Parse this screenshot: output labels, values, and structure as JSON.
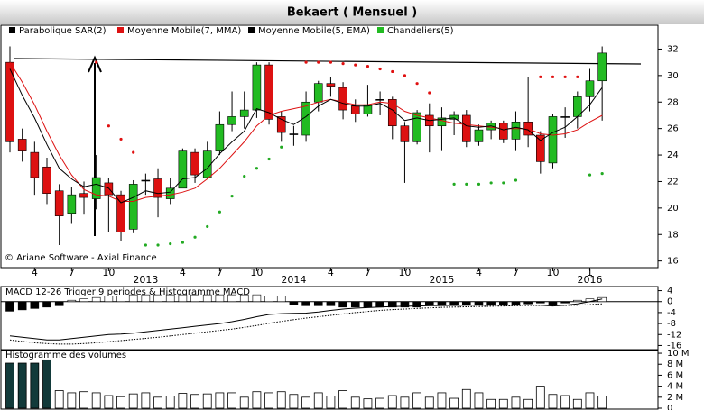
{
  "chart_data": [
    {
      "type": "candlestick",
      "title": "Bekaert  ( Mensuel )",
      "annotation": "© Ariane Software - Axial Finance",
      "categories": [
        null,
        null,
        "4",
        null,
        null,
        "7",
        null,
        null,
        "10",
        null,
        null,
        null,
        null,
        null,
        "4",
        null,
        null,
        "7",
        null,
        null,
        "10",
        null,
        null,
        null,
        null,
        null,
        "4",
        null,
        null,
        "7",
        null,
        null,
        "10",
        null,
        null,
        null,
        null,
        null,
        "4",
        null,
        null,
        "7",
        null,
        null,
        "10",
        null,
        null,
        "1",
        null
      ],
      "years": [
        {
          "index": 11,
          "label": "2013"
        },
        {
          "index": 23,
          "label": "2014"
        },
        {
          "index": 35,
          "label": "2015"
        },
        {
          "index": 47,
          "label": "2016"
        }
      ],
      "series": [
        {
          "name": "Parabolique SAR(2)",
          "color": "#000000",
          "above_color": "#e01010",
          "below_color": "#22aa22",
          "values": [
            null,
            null,
            null,
            null,
            null,
            null,
            null,
            31.0,
            26.2,
            25.2,
            24.2,
            17.2,
            17.2,
            17.3,
            17.4,
            17.8,
            18.6,
            19.7,
            20.9,
            22.4,
            23.0,
            23.7,
            24.6,
            null,
            31.0,
            31.0,
            31.0,
            30.9,
            30.8,
            30.7,
            30.5,
            30.3,
            30.0,
            29.4,
            28.7,
            null,
            21.8,
            21.8,
            21.8,
            21.9,
            21.9,
            22.1,
            null,
            29.9,
            29.9,
            29.9,
            29.9,
            22.5,
            22.6
          ]
        },
        {
          "name": "Moyenne Mobile(7, MMA)",
          "color": "#dd1111",
          "values": [
            31,
            29.5,
            27.8,
            25.8,
            24,
            22.5,
            21.4,
            21,
            20.9,
            20.5,
            20.5,
            20.8,
            20.9,
            21,
            21.2,
            21.5,
            22.2,
            23,
            24,
            25,
            26.2,
            27,
            27.3,
            27.5,
            27.7,
            28,
            28.2,
            28,
            27.8,
            27.8,
            28,
            27.9,
            27.3,
            27,
            26.8,
            26.6,
            26.4,
            26.3,
            26.2,
            26.1,
            26,
            26,
            26,
            25.6,
            25.5,
            25.6,
            25.9,
            26.5,
            27
          ]
        },
        {
          "name": "Moyenne Mobile(5, EMA)",
          "color": "#000000",
          "values": [
            30.5,
            28.5,
            26.8,
            24.8,
            23,
            22.2,
            21.6,
            21.8,
            21.5,
            20.4,
            20.8,
            21.3,
            21.1,
            21.2,
            22.2,
            22.3,
            23,
            24.1,
            25,
            25.8,
            27.5,
            27.2,
            26.7,
            26.3,
            26.9,
            27.7,
            28.2,
            27.9,
            27.7,
            27.7,
            27.9,
            27.4,
            26.6,
            26.8,
            26.6,
            26.7,
            26.8,
            26.2,
            26.1,
            26.2,
            25.9,
            26.1,
            25.9,
            25.1,
            25.7,
            26.1,
            26.9,
            27.8,
            29.1
          ]
        },
        {
          "name": "Chandeliers(5)",
          "color": "#22bb22",
          "down_color": "#dd1111",
          "open": [
            31.0,
            25.2,
            24.2,
            23.1,
            21.3,
            19.6,
            21.1,
            20.7,
            21.9,
            21.0,
            18.4,
            22.1,
            22.2,
            20.7,
            21.5,
            24.2,
            22.3,
            24.3,
            26.3,
            26.9,
            27.4,
            30.8,
            26.9,
            25.6,
            25.5,
            28.0,
            29.4,
            29.1,
            27.7,
            27.1,
            28.2,
            28.2,
            26.2,
            25.0,
            27.0,
            26.2,
            26.7,
            27.0,
            25.0,
            25.9,
            26.4,
            25.2,
            26.5,
            25.5,
            23.4,
            26.9,
            26.9,
            28.4,
            29.6
          ],
          "high": [
            32.2,
            26.0,
            25.0,
            23.8,
            21.8,
            21.6,
            22.0,
            24.0,
            22.3,
            21.3,
            22.1,
            22.6,
            23.0,
            22.3,
            24.5,
            24.5,
            25.0,
            27.3,
            28.8,
            28.8,
            31.0,
            31.0,
            27.3,
            26.2,
            28.8,
            29.6,
            29.9,
            29.5,
            28.2,
            29.3,
            28.8,
            28.4,
            26.5,
            27.4,
            27.9,
            27.6,
            27.3,
            27.4,
            26.3,
            26.6,
            26.6,
            27.3,
            29.9,
            25.8,
            27.1,
            27.6,
            28.8,
            30.5,
            32.2
          ],
          "low": [
            24.2,
            23.5,
            21.0,
            20.3,
            17.2,
            18.8,
            19.5,
            19.9,
            18.2,
            17.5,
            18.1,
            21.0,
            19.3,
            20.3,
            21.5,
            21.9,
            22.2,
            24.0,
            25.8,
            26.0,
            26.8,
            26.3,
            25.0,
            24.7,
            25.0,
            27.3,
            28.4,
            26.7,
            26.5,
            26.9,
            27.0,
            25.2,
            21.9,
            24.8,
            24.2,
            24.3,
            25.5,
            24.6,
            24.7,
            25.2,
            24.9,
            24.3,
            24.6,
            22.6,
            23.0,
            25.3,
            26.0,
            27.3,
            26.6
          ],
          "close": [
            25.0,
            24.3,
            22.3,
            21.1,
            19.4,
            21.0,
            20.8,
            22.3,
            21.0,
            18.2,
            21.8,
            22.1,
            20.8,
            21.5,
            24.3,
            22.5,
            24.3,
            26.3,
            26.9,
            27.4,
            30.8,
            26.7,
            25.7,
            25.6,
            28.0,
            29.4,
            29.2,
            27.4,
            27.1,
            27.8,
            28.2,
            26.2,
            25.0,
            27.2,
            26.2,
            26.8,
            27.0,
            25.0,
            25.9,
            26.4,
            25.2,
            26.5,
            25.5,
            23.5,
            26.9,
            26.9,
            28.4,
            29.6,
            31.7
          ]
        }
      ],
      "ylim": [
        15.5,
        33.8
      ],
      "yticks": [
        16,
        18,
        20,
        22,
        24,
        26,
        28,
        30,
        32
      ],
      "grid": false
    },
    {
      "type": "macd",
      "title": "MACD 12-26   Trigger 9 periodes & Histogramme MACD",
      "macd": [
        -12.5,
        -13,
        -13.5,
        -14,
        -14,
        -13.5,
        -13,
        -12.5,
        -12,
        -11.8,
        -11.5,
        -11,
        -10.5,
        -10,
        -9.5,
        -9,
        -8.5,
        -8,
        -7.3,
        -6.5,
        -5.5,
        -4.7,
        -4.4,
        -4.3,
        -4.2,
        -3.8,
        -3.2,
        -2.7,
        -2.4,
        -2.2,
        -2,
        -1.8,
        -1.7,
        -1.6,
        -1.5,
        -1.4,
        -1.4,
        -1.3,
        -1.3,
        -1.3,
        -1.3,
        -1.3,
        -1.2,
        -1.3,
        -1.6,
        -1.3,
        -0.8,
        0,
        1
      ],
      "trigger": [
        -14,
        -14.5,
        -15,
        -15.3,
        -15.5,
        -15.5,
        -15.3,
        -15,
        -14.6,
        -14.2,
        -13.8,
        -13.4,
        -13,
        -12.5,
        -12,
        -11.5,
        -11,
        -10.5,
        -10,
        -9.4,
        -8.7,
        -7.9,
        -7.2,
        -6.6,
        -6,
        -5.5,
        -5,
        -4.5,
        -4,
        -3.6,
        -3.2,
        -2.9,
        -2.7,
        -2.5,
        -2.3,
        -2.1,
        -2,
        -1.9,
        -1.8,
        -1.7,
        -1.6,
        -1.5,
        -1.4,
        -1.4,
        -1.4,
        -1.4,
        -1.3,
        -1.1,
        -0.8
      ],
      "histogram": [
        -3.5,
        -3,
        -2.5,
        -2,
        -1.5,
        0.5,
        1,
        1.5,
        2,
        2,
        2.5,
        2.5,
        2.5,
        2.5,
        2.5,
        2.5,
        2.5,
        2.5,
        2.5,
        2.5,
        2.5,
        2,
        2,
        -1,
        -1.5,
        -1.5,
        -1.5,
        -2,
        -2,
        -2,
        -2,
        -2,
        -2,
        -2,
        -1.5,
        -1.5,
        -1,
        -1,
        -1,
        -1,
        -1,
        -1,
        -0.8,
        -0.5,
        -1,
        -0.5,
        0.5,
        1,
        1.5
      ],
      "color": "#000000",
      "trigger_style": "dotted",
      "ylim": [
        -17.5,
        5.5
      ],
      "yticks": [
        4,
        0,
        -4,
        -8,
        -12,
        -16
      ]
    },
    {
      "type": "bar",
      "title": "Histogramme des volumes",
      "values": [
        8.2,
        8.2,
        8.2,
        8.8,
        3.2,
        2.8,
        3.0,
        2.8,
        2.3,
        2.1,
        2.6,
        2.8,
        2.0,
        2.2,
        2.7,
        2.5,
        2.6,
        2.8,
        2.8,
        2.0,
        3.0,
        2.8,
        3.0,
        2.5,
        2.0,
        2.8,
        2.2,
        3.2,
        2.0,
        1.7,
        1.8,
        2.3,
        2.0,
        2.8,
        2.0,
        2.8,
        1.8,
        3.4,
        2.8,
        1.6,
        1.6,
        2.0,
        1.6,
        4.0,
        2.5,
        2.3,
        1.6,
        2.8,
        2.2
      ],
      "colors": [
        "#123a3a",
        "#123a3a",
        "#123a3a",
        "#123a3a",
        "#ffffff",
        "#ffffff",
        "#ffffff",
        "#ffffff",
        "#ffffff",
        "#ffffff",
        "#ffffff",
        "#ffffff",
        "#ffffff",
        "#ffffff",
        "#ffffff",
        "#ffffff",
        "#ffffff",
        "#ffffff",
        "#ffffff",
        "#ffffff",
        "#ffffff",
        "#ffffff",
        "#ffffff",
        "#ffffff",
        "#ffffff",
        "#ffffff",
        "#ffffff",
        "#ffffff",
        "#ffffff",
        "#ffffff",
        "#ffffff",
        "#ffffff",
        "#ffffff",
        "#ffffff",
        "#ffffff",
        "#ffffff",
        "#ffffff",
        "#ffffff",
        "#ffffff",
        "#ffffff",
        "#ffffff",
        "#ffffff",
        "#ffffff",
        "#ffffff",
        "#ffffff",
        "#ffffff",
        "#ffffff",
        "#ffffff",
        "#ffffff"
      ],
      "ylim": [
        0,
        10.5
      ],
      "yticks": [
        {
          "value": 10,
          "label": "10 M"
        },
        {
          "value": 8,
          "label": "8 M"
        },
        {
          "value": 6,
          "label": "6 M"
        },
        {
          "value": 4,
          "label": "4 M"
        },
        {
          "value": 2,
          "label": "2 M"
        },
        0
      ]
    }
  ]
}
